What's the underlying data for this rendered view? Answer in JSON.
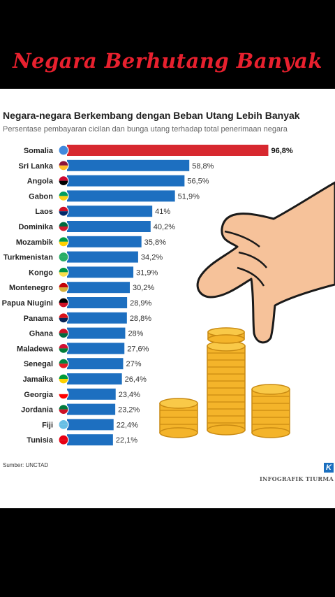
{
  "banner": {
    "title": "Negara Berhutang Banyak"
  },
  "infographic": {
    "title": "Negara-negara Berkembang dengan Beban Utang Lebih Banyak",
    "subtitle": "Persentase pembayaran cicilan dan bunga utang terhadap total penerimaan negara",
    "source": "Sumber: UNCTAD",
    "credit": "INFOGRAFIK TIURMA",
    "logo_letter": "K"
  },
  "colors": {
    "banner_text": "#e8202e",
    "highlight_bar": "#d7282f",
    "bar": "#1d6fc0"
  },
  "chart_data": {
    "type": "bar",
    "orientation": "horizontal",
    "unit": "%",
    "categories": [
      "Somalia",
      "Sri Lanka",
      "Angola",
      "Gabon",
      "Laos",
      "Dominika",
      "Mozambik",
      "Turkmenistan",
      "Kongo",
      "Montenegro",
      "Papua Niugini",
      "Panama",
      "Ghana",
      "Maladewa",
      "Senegal",
      "Jamaika",
      "Georgia",
      "Jordania",
      "Fiji",
      "Tunisia"
    ],
    "values": [
      96.8,
      58.8,
      56.5,
      51.9,
      41,
      40.2,
      35.8,
      34.2,
      31.9,
      30.2,
      28.9,
      28.8,
      28,
      27.6,
      27,
      26.4,
      23.4,
      23.2,
      22.4,
      22.1
    ],
    "value_labels": [
      "96,8%",
      "58,8%",
      "56,5%",
      "51,9%",
      "41%",
      "40,2%",
      "35,8%",
      "34,2%",
      "31,9%",
      "30,2%",
      "28,9%",
      "28,8%",
      "28%",
      "27,6%",
      "27%",
      "26,4%",
      "23,4%",
      "23,2%",
      "22,4%",
      "22,1%"
    ],
    "highlighted": [
      "Somalia"
    ],
    "flag_icons": [
      "somalia-flag-icon",
      "sri-lanka-flag-icon",
      "angola-flag-icon",
      "gabon-flag-icon",
      "laos-flag-icon",
      "dominica-flag-icon",
      "mozambique-flag-icon",
      "turkmenistan-flag-icon",
      "congo-flag-icon",
      "montenegro-flag-icon",
      "papua-new-guinea-flag-icon",
      "panama-flag-icon",
      "ghana-flag-icon",
      "maldives-flag-icon",
      "senegal-flag-icon",
      "jamaica-flag-icon",
      "georgia-flag-icon",
      "jordan-flag-icon",
      "fiji-flag-icon",
      "tunisia-flag-icon"
    ],
    "flag_colors": [
      [
        "#4189dd",
        "#4189dd"
      ],
      [
        "#8d153a",
        "#ffbe29"
      ],
      [
        "#cc092f",
        "#000000"
      ],
      [
        "#009e60",
        "#fcd116"
      ],
      [
        "#ce1126",
        "#002868"
      ],
      [
        "#006b3f",
        "#d41c30"
      ],
      [
        "#009a44",
        "#ffd100"
      ],
      [
        "#28ae66",
        "#28ae66"
      ],
      [
        "#009543",
        "#fbde4a"
      ],
      [
        "#c40308",
        "#d4af3a"
      ],
      [
        "#000000",
        "#ce1126"
      ],
      [
        "#da121a",
        "#072357"
      ],
      [
        "#ce1126",
        "#006b3f"
      ],
      [
        "#d21034",
        "#007e3a"
      ],
      [
        "#00853f",
        "#e31b23"
      ],
      [
        "#009b3a",
        "#fed100"
      ],
      [
        "#ffffff",
        "#ff0000"
      ],
      [
        "#007a3d",
        "#ce1126"
      ],
      [
        "#68bfe5",
        "#68bfe5"
      ],
      [
        "#e70013",
        "#e70013"
      ]
    ]
  }
}
